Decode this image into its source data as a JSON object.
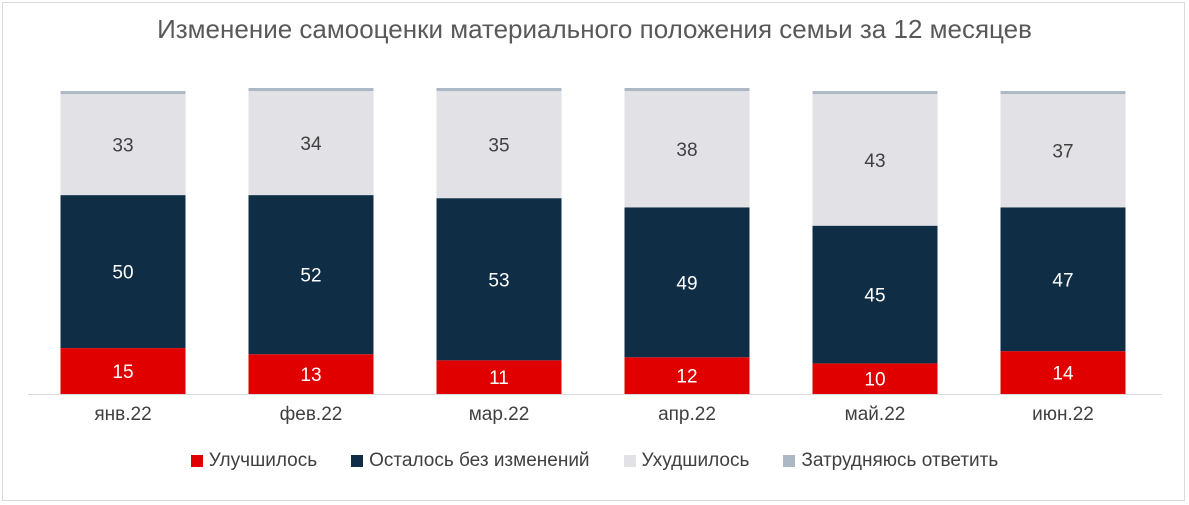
{
  "chart_data": {
    "type": "bar",
    "stacked": true,
    "title": "Изменение самооценки материального положения семьи за 12 месяцев",
    "categories": [
      "янв.22",
      "фев.22",
      "мар.22",
      "апр.22",
      "май.22",
      "июн.22"
    ],
    "series": [
      {
        "name": "Улучшилось",
        "values": [
          15,
          13,
          11,
          12,
          10,
          14
        ],
        "color": "#e00000",
        "label_color": "#ffffff"
      },
      {
        "name": "Осталось без изменений",
        "values": [
          50,
          52,
          53,
          49,
          45,
          47
        ],
        "color": "#102d46",
        "label_color": "#ffffff"
      },
      {
        "name": "Ухудшилось",
        "values": [
          33,
          34,
          35,
          38,
          43,
          37
        ],
        "color": "#e2e2e6",
        "label_color": "#404040"
      },
      {
        "name": "Затрудняюсь ответить",
        "values": [
          1,
          1,
          1,
          1,
          1,
          1
        ],
        "color": "#aeb8c4",
        "label_color": "#404040"
      }
    ],
    "ylim": [
      0,
      100
    ],
    "grid": false,
    "legend_position": "bottom"
  }
}
